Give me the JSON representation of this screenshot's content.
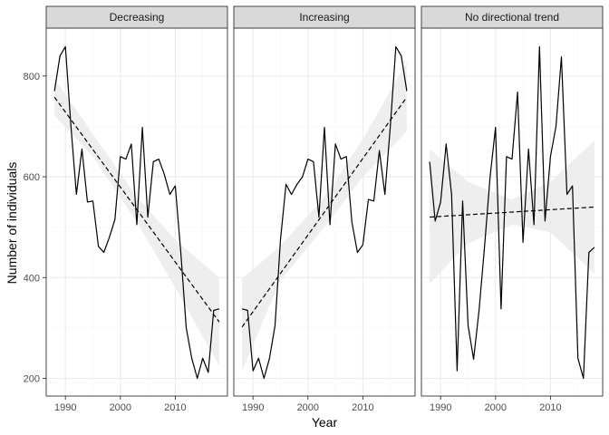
{
  "chart_data": {
    "type": "line",
    "xlabel": "Year",
    "ylabel": "Number of individuals",
    "xlim": [
      1986.5,
      2019.5
    ],
    "ylim": [
      165,
      895
    ],
    "x_ticks": [
      1990,
      2000,
      2010
    ],
    "y_ticks": [
      200,
      400,
      600,
      800
    ],
    "grid": true,
    "colors": {
      "line": "#000000",
      "trend": "#000000",
      "ribbon": "#ebebeb",
      "strip_fill": "#d9d9d9",
      "panel_border": "#333333",
      "grid_major": "#ebebeb",
      "grid_minor": "#f5f5f5"
    },
    "panels": [
      {
        "label": "Decreasing",
        "series": {
          "x": [
            1988,
            1989,
            1990,
            1991,
            1992,
            1993,
            1994,
            1995,
            1996,
            1997,
            1998,
            1999,
            2000,
            2001,
            2002,
            2003,
            2004,
            2005,
            2006,
            2007,
            2008,
            2009,
            2010,
            2011,
            2012,
            2013,
            2014,
            2015,
            2016,
            2017,
            2018
          ],
          "y": [
            770,
            840,
            858,
            700,
            565,
            655,
            550,
            552,
            462,
            450,
            480,
            515,
            640,
            635,
            665,
            505,
            698,
            520,
            630,
            635,
            605,
            565,
            582,
            450,
            300,
            240,
            200,
            240,
            212,
            335,
            338
          ]
        },
        "trend": {
          "x": [
            1988,
            2018
          ],
          "y": [
            758,
            312
          ]
        },
        "ribbon": {
          "x": [
            1988,
            1995,
            2003,
            2010,
            2018
          ],
          "upper": [
            795,
            685,
            560,
            475,
            400
          ],
          "lower": [
            722,
            640,
            510,
            380,
            225
          ]
        }
      },
      {
        "label": "Increasing",
        "series": {
          "x": [
            1988,
            1989,
            1990,
            1991,
            1992,
            1993,
            1994,
            1995,
            1996,
            1997,
            1998,
            1999,
            2000,
            2001,
            2002,
            2003,
            2004,
            2005,
            2006,
            2007,
            2008,
            2009,
            2010,
            2011,
            2012,
            2013,
            2014,
            2015,
            2016,
            2017,
            2018
          ],
          "y": [
            338,
            335,
            215,
            240,
            200,
            240,
            305,
            475,
            585,
            565,
            585,
            600,
            635,
            630,
            520,
            698,
            505,
            665,
            635,
            640,
            510,
            450,
            465,
            555,
            552,
            652,
            565,
            700,
            858,
            840,
            770
          ]
        },
        "trend": {
          "x": [
            1988,
            2018
          ],
          "y": [
            302,
            758
          ]
        },
        "ribbon": {
          "x": [
            1988,
            1995,
            2003,
            2010,
            2018
          ],
          "upper": [
            398,
            463,
            560,
            675,
            828
          ],
          "lower": [
            215,
            395,
            500,
            600,
            690
          ]
        }
      },
      {
        "label": "No directional trend",
        "series": {
          "x": [
            1988,
            1989,
            1990,
            1991,
            1992,
            1993,
            1994,
            1995,
            1996,
            1997,
            1998,
            1999,
            2000,
            2001,
            2002,
            2003,
            2004,
            2005,
            2006,
            2007,
            2008,
            2009,
            2010,
            2011,
            2012,
            2013,
            2014,
            2015,
            2016,
            2017,
            2018
          ],
          "y": [
            630,
            512,
            550,
            665,
            565,
            215,
            552,
            305,
            238,
            335,
            462,
            600,
            698,
            338,
            640,
            635,
            768,
            470,
            655,
            505,
            858,
            512,
            640,
            700,
            838,
            565,
            582,
            240,
            200,
            450,
            460
          ]
        },
        "trend": {
          "x": [
            1988,
            2018
          ],
          "y": [
            520,
            540
          ]
        },
        "ribbon": {
          "x": [
            1988,
            1995,
            2003,
            2010,
            2018
          ],
          "upper": [
            655,
            590,
            555,
            590,
            672
          ],
          "lower": [
            388,
            468,
            505,
            490,
            408
          ]
        }
      }
    ]
  }
}
